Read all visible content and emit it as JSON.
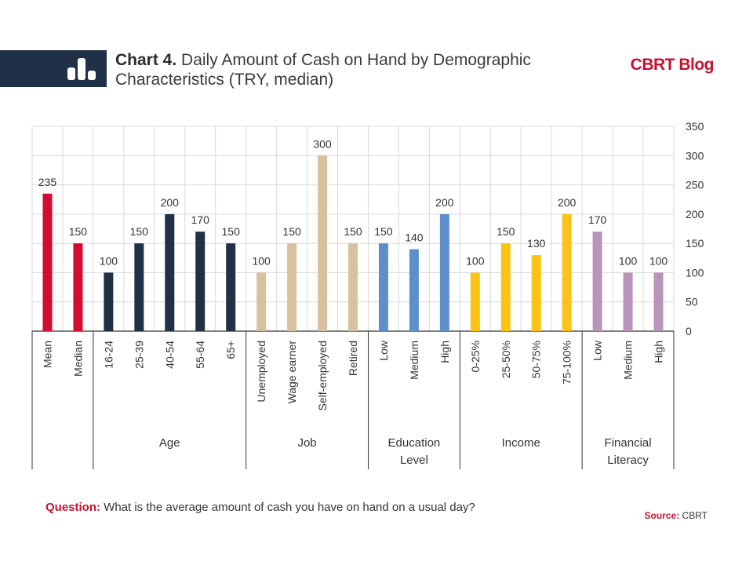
{
  "header": {
    "title_prefix": "Chart 4.",
    "title_text": "Daily Amount of Cash on Hand by Demographic Characteristics (TRY, median)",
    "brand": "CBRT Blog",
    "accent_color": "#c8102e",
    "band_color": "#1f3047",
    "icon": "bar-chart-icon"
  },
  "footer": {
    "question_label": "Question:",
    "question_text": "What is the average amount of cash you have on hand on a usual day?",
    "source_label": "Source:",
    "source_text": "CBRT"
  },
  "chart_data": {
    "type": "bar",
    "ylim": [
      0,
      350
    ],
    "yticks": [
      0,
      50,
      100,
      150,
      200,
      250,
      300,
      350
    ],
    "grid": true,
    "axis_side": "right",
    "categories": [
      "Mean",
      "Median",
      "16-24",
      "25-39",
      "40-54",
      "55-64",
      "65+",
      "Unemployed",
      "Wage earner",
      "Self-employed",
      "Retired",
      "Low",
      "Medium",
      "High",
      "0-25%",
      "25-50%",
      "50-75%",
      "75-100%",
      "Low",
      "Medium",
      "High"
    ],
    "values": [
      235,
      150,
      100,
      150,
      200,
      170,
      150,
      100,
      150,
      300,
      150,
      150,
      140,
      200,
      100,
      150,
      130,
      200,
      170,
      100,
      100
    ],
    "colors": [
      "#d50c32",
      "#d50c32",
      "#1f3047",
      "#1f3047",
      "#1f3047",
      "#1f3047",
      "#1f3047",
      "#d7c19f",
      "#d7c19f",
      "#d7c19f",
      "#d7c19f",
      "#5f8fcb",
      "#5f8fcb",
      "#5f8fcb",
      "#fbc315",
      "#fbc315",
      "#fbc315",
      "#fbc315",
      "#b894bb",
      "#b894bb",
      "#b894bb"
    ],
    "groups": [
      {
        "label": "",
        "start": 0,
        "end": 1
      },
      {
        "label": "Age",
        "start": 2,
        "end": 6
      },
      {
        "label": "Job",
        "start": 7,
        "end": 10
      },
      {
        "label": "Education Level",
        "start": 11,
        "end": 13
      },
      {
        "label": "Income",
        "start": 14,
        "end": 17
      },
      {
        "label": "Financial Literacy",
        "start": 18,
        "end": 20
      }
    ]
  }
}
